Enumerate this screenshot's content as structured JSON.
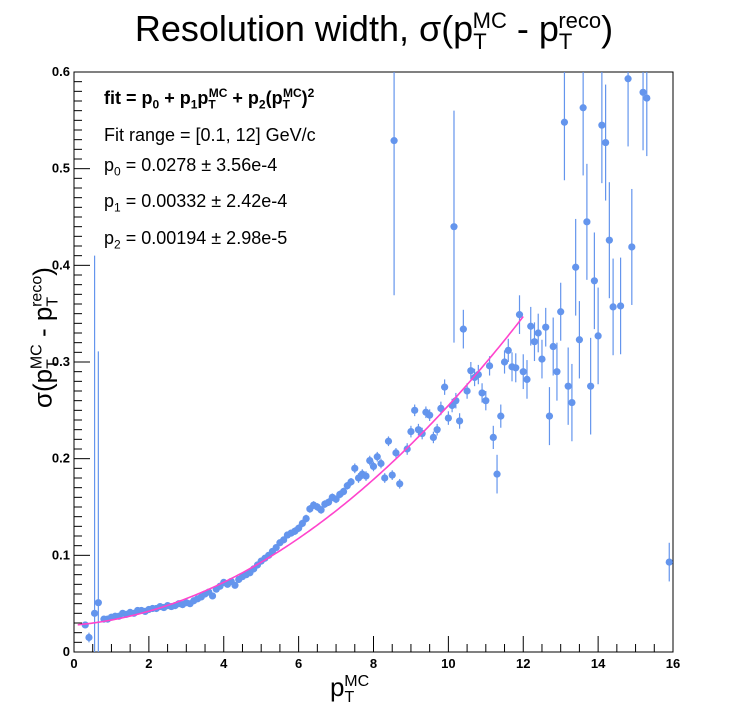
{
  "title": {
    "main": "Resolution width, σ(p",
    "sub1": "T",
    "sup1": "MC",
    "mid": " - p",
    "sub2": "T",
    "sup2": "reco",
    "end": ")"
  },
  "axes": {
    "x": {
      "label_main": "p",
      "label_sub": "T",
      "label_sup": "MC",
      "ticks": [
        "0",
        "2",
        "4",
        "6",
        "8",
        "10",
        "12",
        "14",
        "16"
      ],
      "range": [
        0,
        16
      ]
    },
    "y": {
      "label_main": "σ(p",
      "label_sub1": "T",
      "label_sup1": "MC",
      "label_mid": " - p",
      "label_sub2": "T",
      "label_sup2": "reco",
      "label_end": ")",
      "ticks": [
        "0",
        "0.1",
        "0.2",
        "0.3",
        "0.4",
        "0.5",
        "0.6"
      ],
      "range": [
        0,
        0.6
      ]
    }
  },
  "fit": {
    "formula": "fit = p0 + p1pT^MC + p2(pT^MC)^2",
    "range": "Fit range = [0.1, 12] GeV/c",
    "p0": "= 0.0278 ± 3.56e-4",
    "p1": "= 0.00332 ± 2.42e-4",
    "p2": "= 0.00194 ± 2.98e-5"
  },
  "colors": {
    "points": "#6495ED",
    "fit": "#ff44cc"
  },
  "chart_data": {
    "type": "scatter",
    "title": "Resolution width, σ(pT^MC - pT^reco)",
    "xlabel": "pT^MC",
    "ylabel": "σ(pT^MC - pT^reco)",
    "xlim": [
      0,
      16
    ],
    "ylim": [
      0,
      0.6
    ],
    "fit_function": {
      "p0": 0.0278,
      "p1": 0.00332,
      "p2": 0.00194,
      "range": [
        0.1,
        12
      ]
    },
    "series": [
      {
        "points": [
          [
            0.3,
            0.028,
            0.003
          ],
          [
            0.4,
            0.015,
            0.005
          ],
          [
            0.55,
            0.04,
            0.37
          ],
          [
            0.65,
            0.051,
            0.26
          ],
          [
            0.8,
            0.034,
            0.003
          ],
          [
            0.9,
            0.034,
            0.003
          ],
          [
            1.0,
            0.036,
            0.003
          ],
          [
            1.1,
            0.037,
            0.003
          ],
          [
            1.2,
            0.037,
            0.003
          ],
          [
            1.3,
            0.04,
            0.003
          ],
          [
            1.4,
            0.039,
            0.003
          ],
          [
            1.5,
            0.041,
            0.003
          ],
          [
            1.6,
            0.04,
            0.003
          ],
          [
            1.7,
            0.043,
            0.003
          ],
          [
            1.8,
            0.043,
            0.003
          ],
          [
            1.9,
            0.042,
            0.003
          ],
          [
            2.0,
            0.044,
            0.003
          ],
          [
            2.1,
            0.045,
            0.003
          ],
          [
            2.2,
            0.045,
            0.003
          ],
          [
            2.3,
            0.047,
            0.003
          ],
          [
            2.4,
            0.046,
            0.003
          ],
          [
            2.5,
            0.048,
            0.003
          ],
          [
            2.6,
            0.047,
            0.003
          ],
          [
            2.7,
            0.048,
            0.003
          ],
          [
            2.8,
            0.05,
            0.003
          ],
          [
            2.9,
            0.049,
            0.003
          ],
          [
            3.0,
            0.051,
            0.003
          ],
          [
            3.1,
            0.05,
            0.003
          ],
          [
            3.2,
            0.053,
            0.003
          ],
          [
            3.3,
            0.055,
            0.003
          ],
          [
            3.4,
            0.057,
            0.003
          ],
          [
            3.5,
            0.06,
            0.003
          ],
          [
            3.6,
            0.062,
            0.003
          ],
          [
            3.7,
            0.058,
            0.003
          ],
          [
            3.8,
            0.065,
            0.003
          ],
          [
            3.9,
            0.068,
            0.003
          ],
          [
            4.0,
            0.072,
            0.003
          ],
          [
            4.1,
            0.07,
            0.003
          ],
          [
            4.2,
            0.073,
            0.003
          ],
          [
            4.3,
            0.069,
            0.003
          ],
          [
            4.4,
            0.075,
            0.003
          ],
          [
            4.5,
            0.078,
            0.003
          ],
          [
            4.6,
            0.08,
            0.003
          ],
          [
            4.7,
            0.082,
            0.003
          ],
          [
            4.8,
            0.086,
            0.003
          ],
          [
            4.9,
            0.09,
            0.003
          ],
          [
            5.0,
            0.094,
            0.003
          ],
          [
            5.1,
            0.097,
            0.003
          ],
          [
            5.2,
            0.1,
            0.003
          ],
          [
            5.3,
            0.104,
            0.003
          ],
          [
            5.4,
            0.108,
            0.003
          ],
          [
            5.5,
            0.113,
            0.003
          ],
          [
            5.6,
            0.116,
            0.003
          ],
          [
            5.7,
            0.121,
            0.003
          ],
          [
            5.8,
            0.123,
            0.003
          ],
          [
            5.9,
            0.125,
            0.004
          ],
          [
            6.0,
            0.128,
            0.004
          ],
          [
            6.1,
            0.133,
            0.004
          ],
          [
            6.2,
            0.138,
            0.004
          ],
          [
            6.3,
            0.148,
            0.004
          ],
          [
            6.4,
            0.152,
            0.004
          ],
          [
            6.5,
            0.15,
            0.004
          ],
          [
            6.6,
            0.147,
            0.004
          ],
          [
            6.7,
            0.153,
            0.004
          ],
          [
            6.8,
            0.155,
            0.004
          ],
          [
            6.9,
            0.16,
            0.004
          ],
          [
            7.0,
            0.158,
            0.004
          ],
          [
            7.1,
            0.163,
            0.004
          ],
          [
            7.2,
            0.166,
            0.004
          ],
          [
            7.3,
            0.172,
            0.004
          ],
          [
            7.4,
            0.176,
            0.004
          ],
          [
            7.5,
            0.19,
            0.005
          ],
          [
            7.6,
            0.18,
            0.005
          ],
          [
            7.7,
            0.184,
            0.005
          ],
          [
            7.8,
            0.182,
            0.005
          ],
          [
            7.9,
            0.198,
            0.005
          ],
          [
            8.0,
            0.192,
            0.005
          ],
          [
            8.1,
            0.202,
            0.005
          ],
          [
            8.2,
            0.195,
            0.005
          ],
          [
            8.3,
            0.18,
            0.005
          ],
          [
            8.4,
            0.218,
            0.005
          ],
          [
            8.5,
            0.183,
            0.005
          ],
          [
            8.6,
            0.206,
            0.005
          ],
          [
            8.7,
            0.174,
            0.005
          ],
          [
            8.55,
            0.529,
            0.16
          ],
          [
            8.9,
            0.21,
            0.006
          ],
          [
            9.0,
            0.228,
            0.006
          ],
          [
            9.1,
            0.25,
            0.006
          ],
          [
            9.2,
            0.23,
            0.006
          ],
          [
            9.3,
            0.226,
            0.006
          ],
          [
            9.4,
            0.248,
            0.006
          ],
          [
            9.5,
            0.245,
            0.006
          ],
          [
            9.6,
            0.222,
            0.006
          ],
          [
            9.7,
            0.23,
            0.006
          ],
          [
            9.8,
            0.252,
            0.007
          ],
          [
            9.9,
            0.274,
            0.008
          ],
          [
            10.0,
            0.242,
            0.007
          ],
          [
            10.1,
            0.255,
            0.007
          ],
          [
            10.2,
            0.26,
            0.008
          ],
          [
            10.3,
            0.239,
            0.008
          ],
          [
            10.15,
            0.44,
            0.12
          ],
          [
            10.4,
            0.334,
            0.02
          ],
          [
            10.5,
            0.27,
            0.008
          ],
          [
            10.6,
            0.291,
            0.009
          ],
          [
            10.7,
            0.284,
            0.009
          ],
          [
            10.8,
            0.287,
            0.01
          ],
          [
            10.9,
            0.268,
            0.01
          ],
          [
            11.0,
            0.26,
            0.01
          ],
          [
            11.1,
            0.296,
            0.01
          ],
          [
            11.2,
            0.222,
            0.012
          ],
          [
            11.3,
            0.184,
            0.02
          ],
          [
            11.4,
            0.244,
            0.012
          ],
          [
            11.5,
            0.3,
            0.012
          ],
          [
            11.6,
            0.312,
            0.012
          ],
          [
            11.7,
            0.295,
            0.015
          ],
          [
            11.8,
            0.294,
            0.015
          ],
          [
            11.9,
            0.349,
            0.02
          ],
          [
            12.0,
            0.29,
            0.018
          ],
          [
            12.1,
            0.282,
            0.02
          ],
          [
            12.2,
            0.337,
            0.02
          ],
          [
            12.3,
            0.321,
            0.02
          ],
          [
            12.4,
            0.33,
            0.02
          ],
          [
            12.5,
            0.303,
            0.02
          ],
          [
            12.6,
            0.336,
            0.02
          ],
          [
            12.7,
            0.244,
            0.03
          ],
          [
            12.8,
            0.316,
            0.03
          ],
          [
            12.9,
            0.29,
            0.03
          ],
          [
            13.0,
            0.352,
            0.03
          ],
          [
            13.1,
            0.548,
            0.06
          ],
          [
            13.2,
            0.275,
            0.04
          ],
          [
            13.3,
            0.258,
            0.04
          ],
          [
            13.4,
            0.398,
            0.05
          ],
          [
            13.5,
            0.323,
            0.04
          ],
          [
            13.6,
            0.563,
            0.07
          ],
          [
            13.7,
            0.445,
            0.06
          ],
          [
            13.8,
            0.275,
            0.05
          ],
          [
            13.9,
            0.384,
            0.05
          ],
          [
            14.0,
            0.327,
            0.05
          ],
          [
            14.1,
            0.545,
            0.06
          ],
          [
            14.2,
            0.527,
            0.06
          ],
          [
            14.3,
            0.426,
            0.06
          ],
          [
            14.4,
            0.357,
            0.05
          ],
          [
            14.6,
            0.358,
            0.05
          ],
          [
            14.8,
            0.593,
            0.07
          ],
          [
            14.9,
            0.419,
            0.06
          ],
          [
            15.2,
            0.579,
            0.06
          ],
          [
            15.3,
            0.573,
            0.06
          ],
          [
            15.9,
            0.093,
            0.02
          ]
        ]
      }
    ]
  }
}
